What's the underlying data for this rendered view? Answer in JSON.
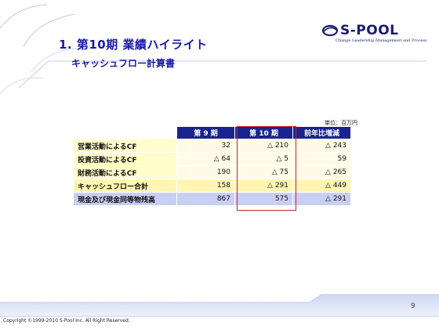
{
  "header": {
    "title": "1. 第10期 業績ハイライト",
    "subtitle": "キャッシュフロー計算書"
  },
  "logo": {
    "name": "S-POOL",
    "tagline": "Change Leadership,Management and Process"
  },
  "table": {
    "unit": "単位：百万円",
    "headers": [
      "",
      "第 9 期",
      "第 10 期",
      "前年比増減"
    ],
    "rows": [
      {
        "label": "営業活動によるCF",
        "p9": "32",
        "p10": "△ 210",
        "diff": "△ 243"
      },
      {
        "label": "投資活動によるCF",
        "p9": "△ 64",
        "p10": "△ 5",
        "diff": "59"
      },
      {
        "label": "財務活動によるCF",
        "p9": "190",
        "p10": "△ 75",
        "diff": "△ 265"
      },
      {
        "label": "キャッシュフロー合計",
        "p9": "158",
        "p10": "△ 291",
        "diff": "△ 449"
      },
      {
        "label": "現金及び現金同等物残高",
        "p9": "867",
        "p10": "575",
        "diff": "△ 291"
      }
    ]
  },
  "footer": {
    "page": "9",
    "copyright": "Copyright ©1999-2010 S-Pool Inc. All Right Reserved."
  }
}
